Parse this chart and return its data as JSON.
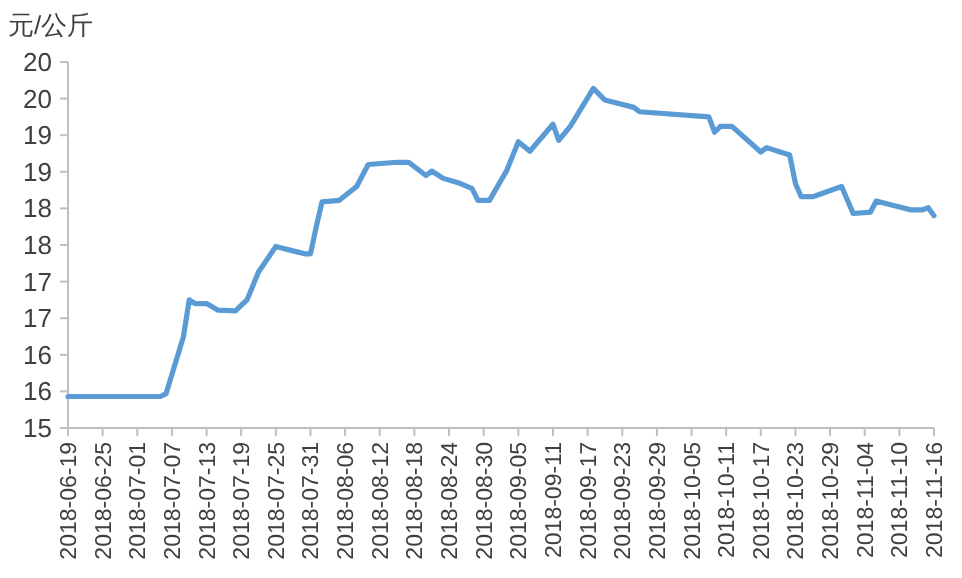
{
  "chart_data": {
    "type": "line",
    "ylabel": "元/公斤",
    "x": [
      "2018-06-19",
      "2018-07-05",
      "2018-07-06",
      "2018-07-09",
      "2018-07-10",
      "2018-07-11",
      "2018-07-13",
      "2018-07-15",
      "2018-07-18",
      "2018-07-20",
      "2018-07-22",
      "2018-07-25",
      "2018-07-26",
      "2018-07-28",
      "2018-07-30",
      "2018-07-31",
      "2018-08-01",
      "2018-08-02",
      "2018-08-05",
      "2018-08-08",
      "2018-08-10",
      "2018-08-15",
      "2018-08-17",
      "2018-08-20",
      "2018-08-21",
      "2018-08-23",
      "2018-08-26",
      "2018-08-28",
      "2018-08-29",
      "2018-08-31",
      "2018-09-03",
      "2018-09-05",
      "2018-09-07",
      "2018-09-11",
      "2018-09-12",
      "2018-09-14",
      "2018-09-18",
      "2018-09-20",
      "2018-09-25",
      "2018-09-26",
      "2018-10-08",
      "2018-10-09",
      "2018-10-10",
      "2018-10-12",
      "2018-10-17",
      "2018-10-18",
      "2018-10-22",
      "2018-10-23",
      "2018-10-24",
      "2018-10-26",
      "2018-10-31",
      "2018-11-02",
      "2018-11-05",
      "2018-11-06",
      "2018-11-09",
      "2018-11-12",
      "2018-11-14",
      "2018-11-15",
      "2018-11-16"
    ],
    "series": [
      {
        "color": "#5b9bd5",
        "values": [
          15.43,
          15.43,
          15.47,
          16.25,
          16.75,
          16.7,
          16.7,
          16.61,
          16.6,
          16.75,
          17.13,
          17.48,
          17.46,
          17.42,
          17.38,
          17.38,
          17.75,
          18.09,
          18.11,
          18.3,
          18.6,
          18.63,
          18.63,
          18.45,
          18.51,
          18.41,
          18.34,
          18.27,
          18.11,
          18.11,
          18.52,
          18.91,
          18.78,
          19.15,
          18.93,
          19.12,
          19.64,
          19.48,
          19.38,
          19.32,
          19.25,
          19.04,
          19.12,
          19.12,
          18.77,
          18.83,
          18.73,
          18.34,
          18.16,
          18.16,
          18.3,
          17.93,
          17.95,
          18.1,
          18.04,
          17.98,
          17.98,
          18.01,
          17.9
        ]
      }
    ],
    "xlim": [
      "2018-06-19",
      "2018-11-16"
    ],
    "xticks": [
      "2018-06-19",
      "2018-06-25",
      "2018-07-01",
      "2018-07-07",
      "2018-07-13",
      "2018-07-19",
      "2018-07-25",
      "2018-07-31",
      "2018-08-06",
      "2018-08-12",
      "2018-08-18",
      "2018-08-24",
      "2018-08-30",
      "2018-09-05",
      "2018-09-11",
      "2018-09-17",
      "2018-09-23",
      "2018-09-29",
      "2018-10-05",
      "2018-10-11",
      "2018-10-17",
      "2018-10-23",
      "2018-10-29",
      "2018-11-04",
      "2018-11-10",
      "2018-11-16"
    ],
    "ylim": [
      15,
      20
    ],
    "yticks": [
      15,
      {
        "value": 15.5,
        "label": "16"
      },
      16,
      {
        "value": 16.5,
        "label": "17"
      },
      17,
      {
        "value": 17.5,
        "label": "18"
      },
      18,
      {
        "value": 18.5,
        "label": "19"
      },
      19,
      {
        "value": 19.5,
        "label": "20"
      },
      20
    ],
    "grid": false,
    "marker": "none",
    "line_style": "solid"
  }
}
